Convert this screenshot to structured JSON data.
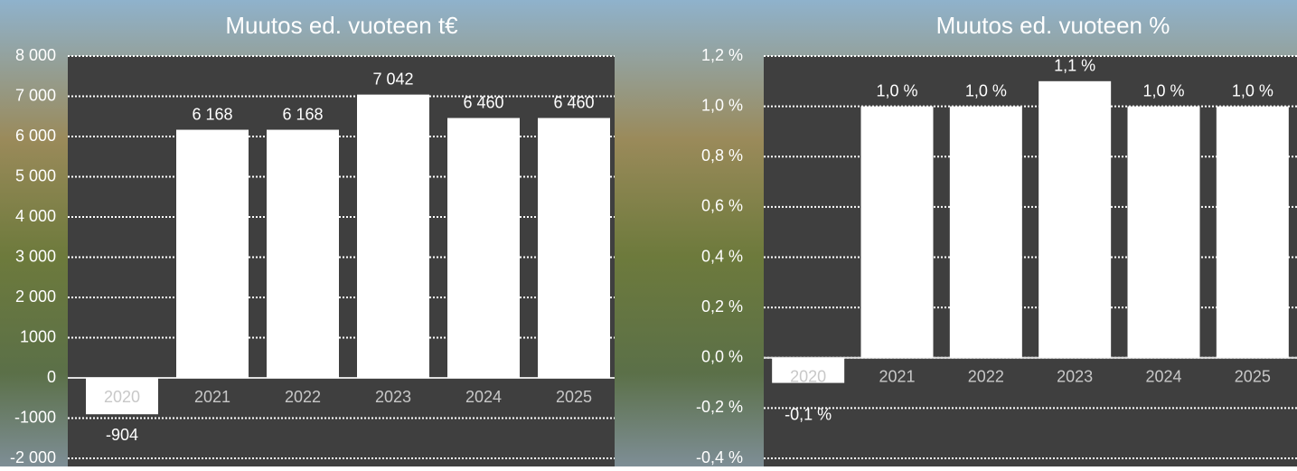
{
  "chart_data": [
    {
      "type": "bar",
      "title": "Muutos ed. vuoteen t€",
      "categories": [
        "2020",
        "2021",
        "2022",
        "2023",
        "2024",
        "2025"
      ],
      "values": [
        -904,
        6168,
        6168,
        7042,
        6460,
        6460
      ],
      "value_labels": [
        "-904",
        "6 168",
        "6 168",
        "7 042",
        "6 460",
        "6 460"
      ],
      "color": "#ffffff",
      "ylim": [
        -2000,
        8000
      ],
      "yticks": [
        {
          "value": -2000,
          "label": "-2 000"
        },
        -1000,
        0,
        1000,
        {
          "value": 2000,
          "label": "2 000"
        },
        {
          "value": 3000,
          "label": "3 000"
        },
        {
          "value": 4000,
          "label": "4 000"
        },
        {
          "value": 5000,
          "label": "5 000"
        },
        {
          "value": 6000,
          "label": "6 000"
        },
        {
          "value": 7000,
          "label": "7 000"
        },
        {
          "value": 8000,
          "label": "8 000"
        }
      ],
      "grid": true
    },
    {
      "type": "bar",
      "title": "Muutos ed. vuoteen %",
      "categories": [
        "2020",
        "2021",
        "2022",
        "2023",
        "2024",
        "2025"
      ],
      "values": [
        -0.1,
        1.0,
        1.0,
        1.1,
        1.0,
        1.0
      ],
      "value_labels": [
        "-0,1 %",
        "1,0 %",
        "1,0 %",
        "1,1 %",
        "1,0 %",
        "1,0 %"
      ],
      "color": "#ffffff",
      "ylim": [
        -0.4,
        1.2
      ],
      "yticks": [
        {
          "value": -0.4,
          "label": "-0,4 %"
        },
        {
          "value": -0.2,
          "label": "-0,2 %"
        },
        {
          "value": 0,
          "label": "0,0 %"
        },
        {
          "value": 0.2,
          "label": "0,2 %"
        },
        {
          "value": 0.4,
          "label": "0,4 %"
        },
        {
          "value": 0.6,
          "label": "0,6 %"
        },
        {
          "value": 0.8,
          "label": "0,8 %"
        },
        {
          "value": 1.0,
          "label": "1,0 %"
        },
        {
          "value": 1.2,
          "label": "1,2 %"
        }
      ],
      "grid": true
    }
  ]
}
